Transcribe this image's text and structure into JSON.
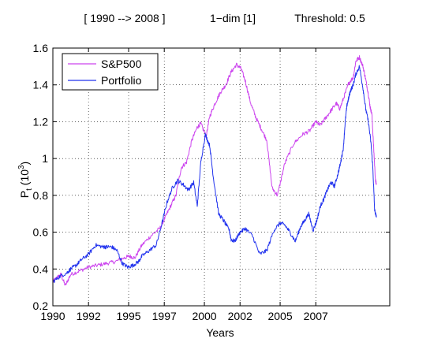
{
  "header": {
    "period": "[ 1990 --> 2008 ]",
    "dim": "1−dim [1]",
    "threshold": "Threshold: 0.5"
  },
  "chart_data": {
    "type": "line",
    "title": "",
    "xlabel": "Years",
    "ylabel_main": "P",
    "ylabel_sub": "t",
    "ylabel_unit_open": " (10",
    "ylabel_unit_exp": "3",
    "ylabel_unit_close": ")",
    "xlim": [
      1990,
      2008.9
    ],
    "ylim": [
      0.2,
      1.6
    ],
    "grid": true,
    "legend_position": "top-left",
    "x_ticks": [
      {
        "value": 1990,
        "label": "1990"
      },
      {
        "value": 1992,
        "label": "1992"
      },
      {
        "value": 1994.25,
        "label": "1995"
      },
      {
        "value": 1996.25,
        "label": "1997"
      },
      {
        "value": 1998.5,
        "label": "2000"
      },
      {
        "value": 2000.5,
        "label": "2002"
      },
      {
        "value": 2002.75,
        "label": "2005"
      },
      {
        "value": 2004.75,
        "label": "2007"
      }
    ],
    "y_ticks": [
      {
        "value": 0.2,
        "label": "0.2"
      },
      {
        "value": 0.4,
        "label": "0.4"
      },
      {
        "value": 0.6,
        "label": "0.6"
      },
      {
        "value": 0.8,
        "label": "0.8"
      },
      {
        "value": 1.0,
        "label": "1"
      },
      {
        "value": 1.2,
        "label": "1.2"
      },
      {
        "value": 1.4,
        "label": "1.4"
      },
      {
        "value": 1.6,
        "label": "1.6"
      }
    ],
    "series": [
      {
        "name": "S&P500",
        "color": "#cc44ee",
        "x": [
          1990.0,
          1990.2,
          1990.45,
          1990.7,
          1991.0,
          1991.5,
          1992.0,
          1992.5,
          1993.0,
          1993.5,
          1994.0,
          1994.3,
          1994.6,
          1995.0,
          1995.5,
          1996.0,
          1996.3,
          1996.6,
          1996.9,
          1997.2,
          1997.5,
          1997.8,
          1998.1,
          1998.3,
          1998.6,
          1998.8,
          1999.1,
          1999.4,
          1999.7,
          2000.0,
          2000.3,
          2000.55,
          2000.8,
          2001.1,
          2001.4,
          2001.7,
          2002.0,
          2002.3,
          2002.6,
          2003.0,
          2003.5,
          2004.0,
          2004.4,
          2004.75,
          2005.0,
          2005.3,
          2005.6,
          2005.9,
          2006.1,
          2006.35,
          2006.6,
          2006.85,
          2007.0,
          2007.2,
          2007.4,
          2007.55,
          2007.7,
          2007.8,
          2007.9,
          2008.0,
          2008.1,
          2008.15
        ],
        "y": [
          0.33,
          0.35,
          0.37,
          0.31,
          0.37,
          0.39,
          0.41,
          0.42,
          0.43,
          0.44,
          0.46,
          0.47,
          0.46,
          0.53,
          0.58,
          0.62,
          0.68,
          0.74,
          0.8,
          0.95,
          0.98,
          1.1,
          1.17,
          1.19,
          1.12,
          1.23,
          1.3,
          1.36,
          1.4,
          1.47,
          1.51,
          1.49,
          1.42,
          1.3,
          1.22,
          1.16,
          1.1,
          0.84,
          0.8,
          0.97,
          1.08,
          1.13,
          1.15,
          1.2,
          1.18,
          1.22,
          1.26,
          1.3,
          1.27,
          1.34,
          1.41,
          1.44,
          1.53,
          1.55,
          1.5,
          1.43,
          1.35,
          1.28,
          1.24,
          1.05,
          0.88,
          0.86
        ]
      },
      {
        "name": "Portfolio",
        "color": "#2233ee",
        "x": [
          1990.0,
          1990.4,
          1990.8,
          1991.0,
          1991.3,
          1991.6,
          1992.0,
          1992.4,
          1992.8,
          1993.0,
          1993.3,
          1993.6,
          1993.9,
          1994.2,
          1994.5,
          1994.8,
          1995.0,
          1995.4,
          1995.8,
          1996.1,
          1996.4,
          1996.7,
          1997.0,
          1997.3,
          1997.6,
          1997.9,
          1998.1,
          1998.3,
          1998.55,
          1998.8,
          1999.0,
          1999.3,
          1999.6,
          1999.9,
          2000.0,
          2000.2,
          2000.5,
          2000.8,
          2001.2,
          2001.6,
          2002.0,
          2002.4,
          2002.75,
          2003.0,
          2003.3,
          2003.6,
          2003.9,
          2004.1,
          2004.35,
          2004.6,
          2004.8,
          2005.0,
          2005.2,
          2005.4,
          2005.6,
          2005.8,
          2006.0,
          2006.15,
          2006.3,
          2006.4,
          2006.5,
          2006.6,
          2006.7,
          2006.85,
          2007.0,
          2007.2,
          2007.4,
          2007.55,
          2007.7,
          2007.85,
          2007.95,
          2008.05,
          2008.15
        ],
        "y": [
          0.33,
          0.36,
          0.38,
          0.4,
          0.42,
          0.45,
          0.48,
          0.53,
          0.52,
          0.52,
          0.52,
          0.5,
          0.43,
          0.41,
          0.42,
          0.44,
          0.47,
          0.5,
          0.53,
          0.64,
          0.76,
          0.84,
          0.88,
          0.86,
          0.83,
          0.87,
          0.74,
          0.98,
          1.13,
          1.07,
          0.9,
          0.7,
          0.66,
          0.61,
          0.56,
          0.55,
          0.6,
          0.62,
          0.58,
          0.48,
          0.5,
          0.61,
          0.65,
          0.64,
          0.6,
          0.55,
          0.63,
          0.66,
          0.7,
          0.61,
          0.66,
          0.74,
          0.78,
          0.83,
          0.87,
          0.85,
          0.92,
          0.98,
          1.06,
          1.2,
          1.29,
          1.33,
          1.37,
          1.4,
          1.46,
          1.5,
          1.38,
          1.27,
          1.2,
          1.08,
          0.95,
          0.72,
          0.68
        ]
      }
    ]
  }
}
